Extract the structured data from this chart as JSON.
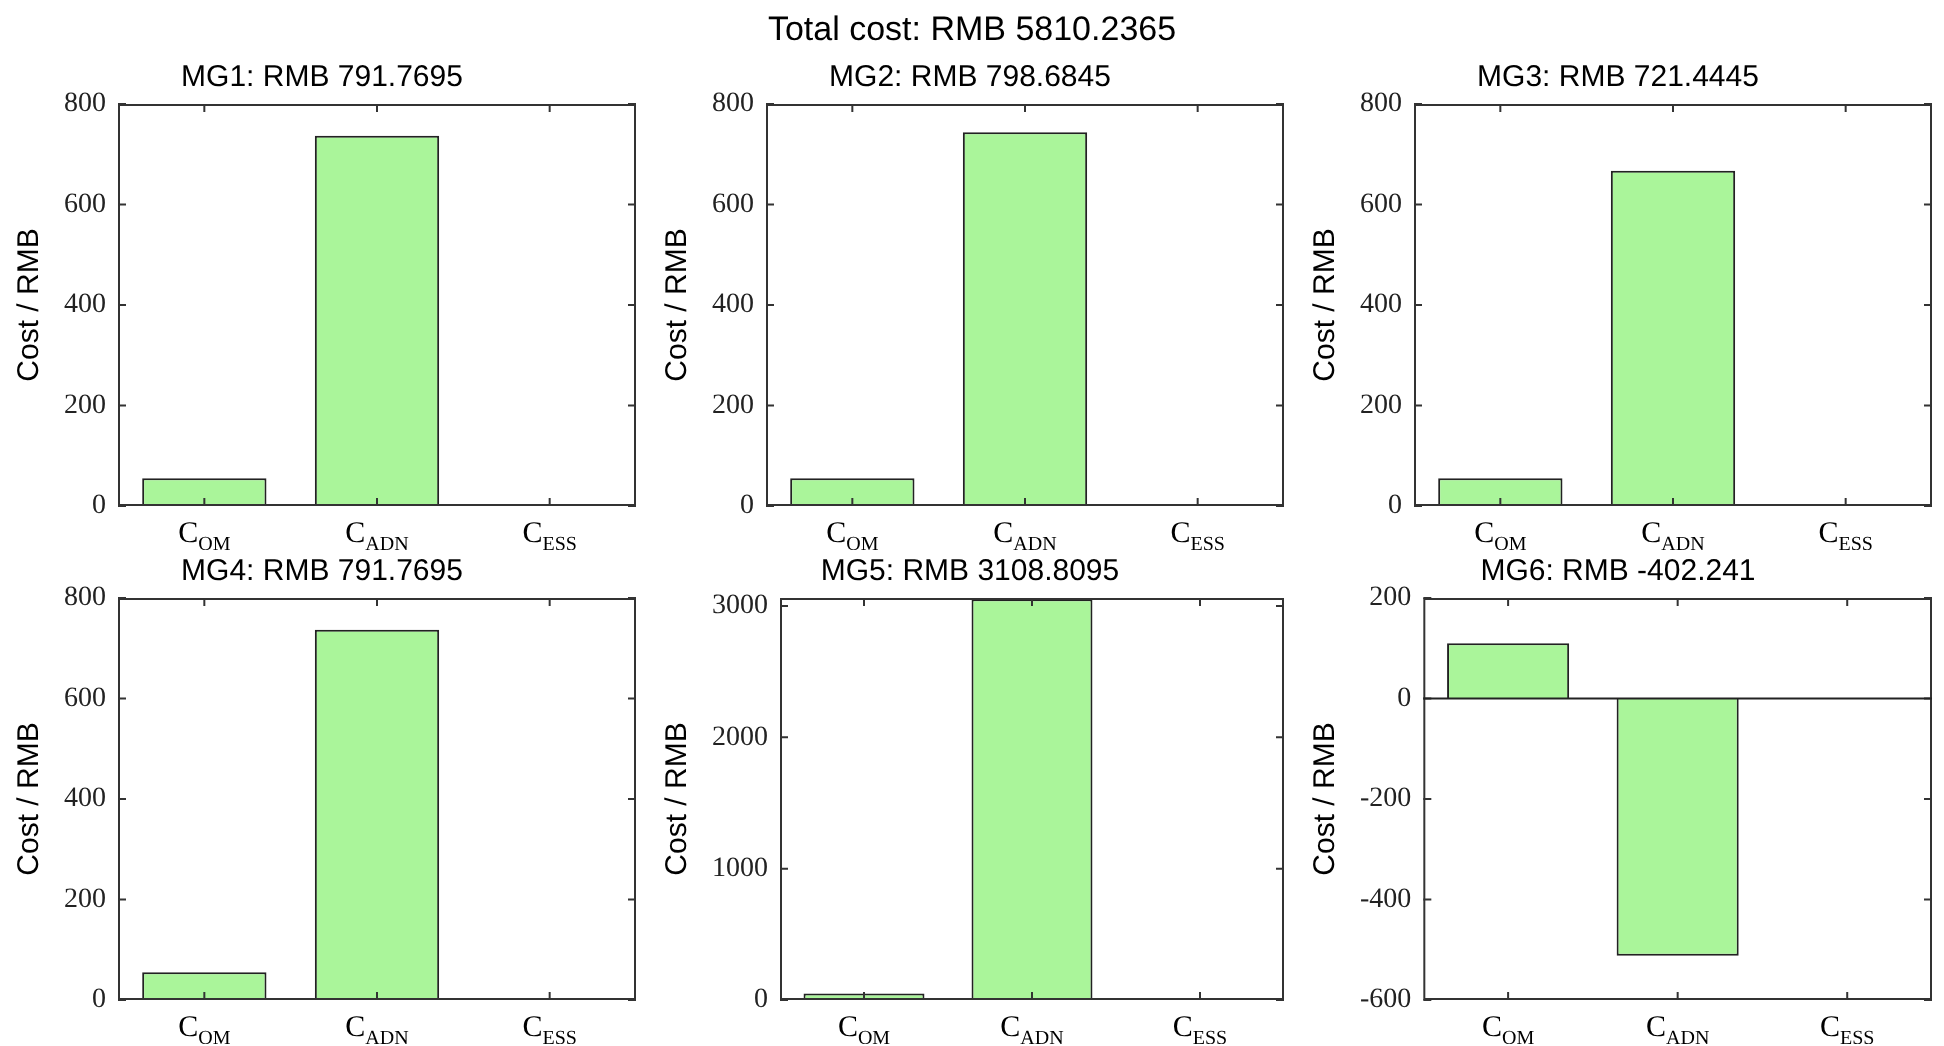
{
  "chart_data": [
    {
      "type": "other",
      "title": "Total cost: RMB 5810.2365"
    },
    {
      "type": "bar",
      "title": "MG1: RMB 791.7695",
      "ylabel": "Cost / RMB",
      "categories": [
        "C$_{OM}$",
        "C$_{ADN}$",
        "C$_{ESS}$"
      ],
      "values": [
        55,
        737,
        0
      ],
      "color": "#aaf59a",
      "ylim": [
        0,
        800
      ],
      "yticks": [
        0,
        200,
        400,
        600,
        800
      ]
    },
    {
      "type": "bar",
      "title": "MG2: RMB 798.6845",
      "ylabel": "Cost / RMB",
      "categories": [
        "C$_{OM}$",
        "C$_{ADN}$",
        "C$_{ESS}$"
      ],
      "values": [
        55,
        744,
        0
      ],
      "color": "#aaf59a",
      "ylim": [
        0,
        800
      ],
      "yticks": [
        0,
        200,
        400,
        600,
        800
      ]
    },
    {
      "type": "bar",
      "title": "MG3: RMB 721.4445",
      "ylabel": "Cost / RMB",
      "categories": [
        "C$_{OM}$",
        "C$_{ADN}$",
        "C$_{ESS}$"
      ],
      "values": [
        55,
        667,
        0
      ],
      "color": "#aaf59a",
      "ylim": [
        0,
        800
      ],
      "yticks": [
        0,
        200,
        400,
        600,
        800
      ]
    },
    {
      "type": "bar",
      "title": "MG4: RMB 791.7695",
      "ylabel": "Cost / RMB",
      "categories": [
        "C$_{OM}$",
        "C$_{ADN}$",
        "C$_{ESS}$"
      ],
      "values": [
        55,
        737,
        0
      ],
      "color": "#aaf59a",
      "ylim": [
        0,
        800
      ],
      "yticks": [
        0,
        200,
        400,
        600,
        800
      ]
    },
    {
      "type": "bar",
      "title": "MG5: RMB 3108.8095",
      "ylabel": "Cost / RMB",
      "categories": [
        "C$_{OM}$",
        "C$_{ADN}$",
        "C$_{ESS}$"
      ],
      "values": [
        50,
        3050,
        0
      ],
      "color": "#aaf59a",
      "ylim": [
        0,
        3060
      ],
      "yticks": [
        0,
        1000,
        2000,
        3000
      ]
    },
    {
      "type": "bar",
      "title": "MG6: RMB -402.241",
      "ylabel": "Cost / RMB",
      "categories": [
        "C$_{OM}$",
        "C$_{ADN}$",
        "C$_{ESS}$"
      ],
      "values": [
        110,
        -512,
        0
      ],
      "color": "#aaf59a",
      "ylim": [
        -600,
        200
      ],
      "yticks": [
        -600,
        -400,
        -200,
        0,
        200
      ],
      "ref_lines": [
        {
          "axis": "y",
          "value": 0
        }
      ]
    }
  ]
}
